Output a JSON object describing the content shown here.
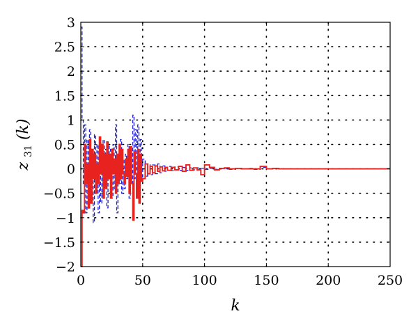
{
  "chart_data": {
    "type": "line",
    "title": "",
    "xlabel": "k",
    "ylabel": {
      "main": "z",
      "sub": "31",
      "arg": "(k)"
    },
    "xlim": [
      0,
      250
    ],
    "ylim": [
      -2,
      3
    ],
    "xticks": [
      0,
      50,
      100,
      150,
      200,
      250
    ],
    "yticks": [
      -2,
      -1.5,
      -1,
      -0.5,
      0,
      0.5,
      1,
      1.5,
      2,
      2.5,
      3
    ],
    "xtick_labels": [
      "0",
      "50",
      "100",
      "150",
      "200",
      "250"
    ],
    "ytick_labels": [
      "−2",
      "−1.5",
      "−1",
      "−0.5",
      "0",
      "0.5",
      "1",
      "1.5",
      "2",
      "2.5",
      "3"
    ],
    "grid": true,
    "legend": "none",
    "series": [
      {
        "style": "dashed",
        "color": "#1f1fd6",
        "step": true,
        "x": [
          0,
          1,
          2,
          3,
          4,
          5,
          6,
          7,
          8,
          9,
          10,
          11,
          12,
          13,
          14,
          15,
          16,
          17,
          18,
          19,
          20,
          21,
          22,
          23,
          24,
          25,
          26,
          27,
          28,
          29,
          30,
          31,
          32,
          33,
          34,
          35,
          36,
          37,
          38,
          39,
          40,
          41,
          42,
          43,
          44,
          45,
          46,
          47,
          48,
          49,
          50,
          52,
          54,
          56,
          58,
          60,
          62,
          64,
          66,
          68,
          70,
          73,
          76,
          79,
          82,
          85,
          88,
          91,
          94,
          97,
          100,
          104,
          108,
          112,
          116,
          120,
          125,
          130,
          135,
          140,
          145,
          150,
          155,
          160,
          170,
          180,
          250
        ],
        "y": [
          2.9,
          1.0,
          -0.3,
          0.9,
          -0.9,
          0.6,
          -0.8,
          0.8,
          -0.6,
          0.3,
          -1.1,
          0.7,
          -0.4,
          0.5,
          -0.9,
          0.3,
          -0.7,
          0.2,
          0.6,
          -0.3,
          0.4,
          -0.8,
          0.5,
          -0.2,
          0.4,
          -0.6,
          0.5,
          -0.4,
          0.9,
          -0.9,
          0.3,
          -0.3,
          0.6,
          -0.5,
          0.2,
          -0.4,
          0.3,
          -0.2,
          0.5,
          -0.6,
          0.3,
          -0.3,
          1.1,
          -0.2,
          0.8,
          -0.4,
          0.9,
          -0.3,
          0.6,
          -0.2,
          0.2,
          -0.15,
          0.1,
          -0.12,
          0.08,
          -0.1,
          0.1,
          -0.08,
          0.06,
          -0.05,
          0.05,
          -0.04,
          0.04,
          -0.03,
          0.03,
          -0.03,
          0.02,
          -0.02,
          0.02,
          0.01,
          -0.01,
          0.01,
          -0.01,
          0.01,
          0.01,
          -0.01,
          0.01,
          0.0,
          0.01,
          -0.01,
          0.03,
          0.0,
          0.01,
          0.0,
          0.0,
          0.0,
          0.0
        ]
      },
      {
        "style": "solid",
        "color": "#e8231f",
        "step": true,
        "x": [
          0,
          1,
          2,
          3,
          4,
          5,
          6,
          7,
          8,
          9,
          10,
          11,
          12,
          13,
          14,
          15,
          16,
          17,
          18,
          19,
          20,
          21,
          22,
          23,
          24,
          25,
          26,
          27,
          28,
          29,
          30,
          31,
          32,
          33,
          34,
          35,
          36,
          37,
          38,
          39,
          40,
          41,
          42,
          43,
          44,
          45,
          46,
          47,
          48,
          49,
          50,
          52,
          54,
          56,
          58,
          60,
          62,
          64,
          66,
          68,
          70,
          73,
          76,
          79,
          82,
          85,
          88,
          91,
          94,
          97,
          100,
          104,
          108,
          112,
          116,
          120,
          125,
          130,
          135,
          140,
          145,
          150,
          155,
          160,
          170,
          180,
          250
        ],
        "y": [
          -2.0,
          -0.85,
          -0.9,
          0.5,
          -0.3,
          0.1,
          -0.8,
          0.6,
          -0.7,
          0.4,
          -0.2,
          0.3,
          -0.5,
          0.1,
          -0.3,
          0.65,
          -0.1,
          0.5,
          -0.6,
          0.3,
          -0.4,
          0.55,
          -0.2,
          0.3,
          -0.6,
          0.4,
          -0.1,
          0.2,
          -0.5,
          0.3,
          -0.3,
          0.5,
          -0.2,
          0.4,
          -0.1,
          -0.3,
          0.2,
          -0.15,
          0.4,
          -0.5,
          0.45,
          -0.3,
          -1.05,
          0.35,
          -0.1,
          -0.6,
          0.4,
          -0.7,
          0.3,
          -0.25,
          -0.2,
          0.1,
          -0.1,
          0.05,
          -0.08,
          0.06,
          -0.05,
          0.04,
          -0.04,
          0.03,
          -0.03,
          0.03,
          -0.02,
          0.05,
          -0.05,
          0.08,
          -0.03,
          0.02,
          -0.02,
          -0.12,
          0.08,
          0.03,
          -0.02,
          0.01,
          0.02,
          0.0,
          0.01,
          0.0,
          0.0,
          0.0,
          0.05,
          0.0,
          0.01,
          0.0,
          0.0,
          0.0,
          0.0
        ]
      }
    ]
  }
}
